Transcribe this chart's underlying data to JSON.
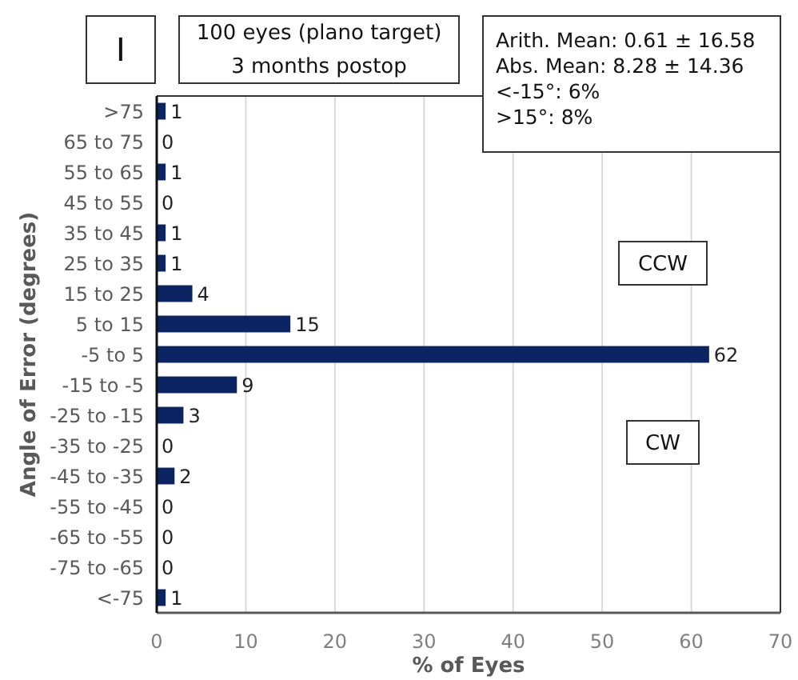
{
  "chart_data": {
    "type": "bar",
    "orientation": "horizontal",
    "title": "100 eyes (plano target)",
    "subtitle": "3 months postop",
    "xlabel": "% of Eyes",
    "ylabel": "Angle of Error (degrees)",
    "annotations": [
      "I",
      "Arith. Mean: 0.61 ± 16.58",
      "Abs. Mean: 8.28 ± 14.36",
      "<-15°: 6%",
      ">15°: 8%",
      "CCW",
      "CW"
    ],
    "categories": [
      ">75",
      "65 to 75",
      "55 to 65",
      "45 to 55",
      "35 to 45",
      "25 to 35",
      "15 to 25",
      "5 to 15",
      "-5 to 5",
      "-15 to -5",
      "-25 to -15",
      "-35 to -25",
      "-45 to -35",
      "-55 to -45",
      "-65 to -55",
      "-75 to -65",
      "<-75"
    ],
    "values": [
      1,
      0,
      1,
      0,
      1,
      1,
      4,
      15,
      62,
      9,
      3,
      0,
      2,
      0,
      0,
      0,
      1
    ],
    "color": "#0c2461",
    "xlim": [
      0,
      70
    ],
    "xticks": [
      0,
      10,
      20,
      30,
      40,
      50,
      60,
      70
    ],
    "grid": "x",
    "data_labels": true
  }
}
